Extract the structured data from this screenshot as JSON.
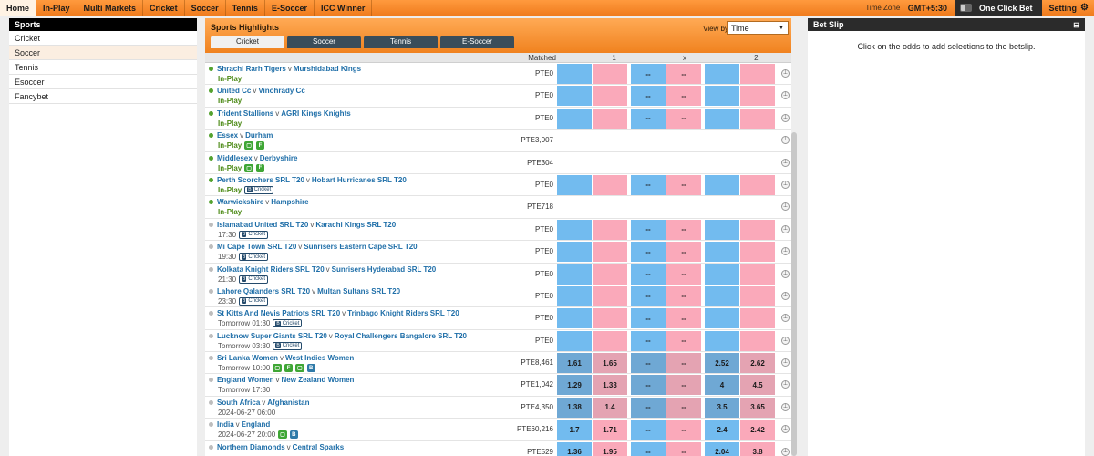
{
  "nav": {
    "items": [
      {
        "label": "Home",
        "active": true
      },
      {
        "label": "In-Play"
      },
      {
        "label": "Multi Markets"
      },
      {
        "label": "Cricket"
      },
      {
        "label": "Soccer"
      },
      {
        "label": "Tennis"
      },
      {
        "label": "E-Soccer"
      },
      {
        "label": "ICC Winner"
      }
    ],
    "timezone_label": "Time Zone :",
    "timezone_value": "GMT+5:30",
    "one_click_label": "One Click Bet",
    "setting_label": "Setting"
  },
  "sidebar": {
    "header": "Sports",
    "items": [
      "Cricket",
      "Soccer",
      "Tennis",
      "Esoccer",
      "Fancybet"
    ],
    "selected": "Soccer"
  },
  "highlights": {
    "title": "Sports Highlights",
    "view_by_label": "View by",
    "view_by_value": "Time",
    "tabs": [
      "Cricket",
      "Soccer",
      "Tennis",
      "E-Soccer"
    ],
    "active_tab": "Cricket",
    "columns": {
      "matched": "Matched",
      "c1": "1",
      "cx": "x",
      "c2": "2"
    },
    "events": [
      {
        "home": "Shrachi Rarh Tigers",
        "away": "Murshidabad Kings",
        "status": "In-Play",
        "live": true,
        "badges": [],
        "matched": "PTE0",
        "odds": [
          "",
          "",
          "--",
          "--",
          "",
          ""
        ],
        "draw": true
      },
      {
        "home": "United Cc",
        "away": "Vinohrady Cc",
        "status": "In-Play",
        "live": true,
        "badges": [],
        "matched": "PTE0",
        "odds": [
          "",
          "",
          "--",
          "--",
          "",
          ""
        ],
        "draw": true
      },
      {
        "home": "Trident Stallions",
        "away": "AGRI Kings Knights",
        "status": "In-Play",
        "live": true,
        "badges": [],
        "matched": "PTE0",
        "odds": [
          "",
          "",
          "--",
          "--",
          "",
          ""
        ],
        "draw": true
      },
      {
        "home": "Essex",
        "away": "Durham",
        "status": "In-Play",
        "live": true,
        "badges": [
          "green",
          "F"
        ],
        "matched": "PTE3,007",
        "odds": null
      },
      {
        "home": "Middlesex",
        "away": "Derbyshire",
        "status": "In-Play",
        "live": true,
        "badges": [
          "green",
          "F"
        ],
        "matched": "PTE304",
        "odds": null
      },
      {
        "home": "Perth Scorchers SRL T20",
        "away": "Hobart Hurricanes SRL T20",
        "status": "In-Play",
        "live": true,
        "badges": [
          "cricket"
        ],
        "matched": "PTE0",
        "odds": [
          "",
          "",
          "--",
          "--",
          "",
          ""
        ],
        "draw": true
      },
      {
        "home": "Warwickshire",
        "away": "Hampshire",
        "status": "In-Play",
        "live": true,
        "badges": [],
        "matched": "PTE718",
        "odds": null
      },
      {
        "home": "Islamabad United SRL T20",
        "away": "Karachi Kings SRL T20",
        "status": "17:30",
        "live": false,
        "badges": [
          "cricket"
        ],
        "matched": "PTE0",
        "odds": [
          "",
          "",
          "--",
          "--",
          "",
          ""
        ],
        "draw": true
      },
      {
        "home": "Mi Cape Town SRL T20",
        "away": "Sunrisers Eastern Cape SRL T20",
        "status": "19:30",
        "live": false,
        "badges": [
          "cricket"
        ],
        "matched": "PTE0",
        "odds": [
          "",
          "",
          "--",
          "--",
          "",
          ""
        ],
        "draw": true
      },
      {
        "home": "Kolkata Knight Riders SRL T20",
        "away": "Sunrisers Hyderabad SRL T20",
        "status": "21:30",
        "live": false,
        "badges": [
          "cricket"
        ],
        "matched": "PTE0",
        "odds": [
          "",
          "",
          "--",
          "--",
          "",
          ""
        ],
        "draw": true
      },
      {
        "home": "Lahore Qalanders SRL T20",
        "away": "Multan Sultans SRL T20",
        "status": "23:30",
        "live": false,
        "badges": [
          "cricket"
        ],
        "matched": "PTE0",
        "odds": [
          "",
          "",
          "--",
          "--",
          "",
          ""
        ],
        "draw": true
      },
      {
        "home": "St Kitts And Nevis Patriots SRL T20",
        "away": "Trinbago Knight Riders SRL T20",
        "status": "Tomorrow 01:30",
        "live": false,
        "badges": [
          "cricket"
        ],
        "matched": "PTE0",
        "odds": [
          "",
          "",
          "--",
          "--",
          "",
          ""
        ],
        "draw": true
      },
      {
        "home": "Lucknow Super Giants SRL T20",
        "away": "Royal Challengers Bangalore SRL T20",
        "status": "Tomorrow 03:30",
        "live": false,
        "badges": [
          "cricket"
        ],
        "matched": "PTE0",
        "odds": [
          "",
          "",
          "--",
          "--",
          "",
          ""
        ],
        "draw": true
      },
      {
        "home": "Sri Lanka Women",
        "away": "West Indies Women",
        "status": "Tomorrow 10:00",
        "live": false,
        "badges": [
          "green",
          "F",
          "green",
          "B"
        ],
        "matched": "PTE8,461",
        "odds": [
          "1.61",
          "1.65",
          "--",
          "--",
          "2.52",
          "2.62"
        ],
        "dark": true
      },
      {
        "home": "England Women",
        "away": "New Zealand Women",
        "status": "Tomorrow 17:30",
        "live": false,
        "badges": [],
        "matched": "PTE1,042",
        "odds": [
          "1.29",
          "1.33",
          "--",
          "--",
          "4",
          "4.5"
        ],
        "dark": true
      },
      {
        "home": "South Africa",
        "away": "Afghanistan",
        "status": "2024-06-27 06:00",
        "live": false,
        "badges": [],
        "matched": "PTE4,350",
        "odds": [
          "1.38",
          "1.4",
          "--",
          "--",
          "3.5",
          "3.65"
        ],
        "dark": true
      },
      {
        "home": "India",
        "away": "England",
        "status": "2024-06-27 20:00",
        "live": false,
        "badges": [
          "green",
          "B"
        ],
        "matched": "PTE60,216",
        "odds": [
          "1.7",
          "1.71",
          "--",
          "--",
          "2.4",
          "2.42"
        ],
        "dark": false
      },
      {
        "home": "Northern Diamonds",
        "away": "Central Sparks",
        "status": "",
        "live": false,
        "badges": [],
        "matched": "PTE529",
        "odds": [
          "1.36",
          "1.95",
          "--",
          "--",
          "2.04",
          "3.8"
        ],
        "dark": false
      }
    ]
  },
  "betslip": {
    "title": "Bet Slip",
    "minimize": "⊟",
    "message": "Click on the odds to add selections to the betslip."
  },
  "icons": {
    "gear": "gear-icon",
    "pin": "pin-icon",
    "caret": "caret-down-icon"
  }
}
